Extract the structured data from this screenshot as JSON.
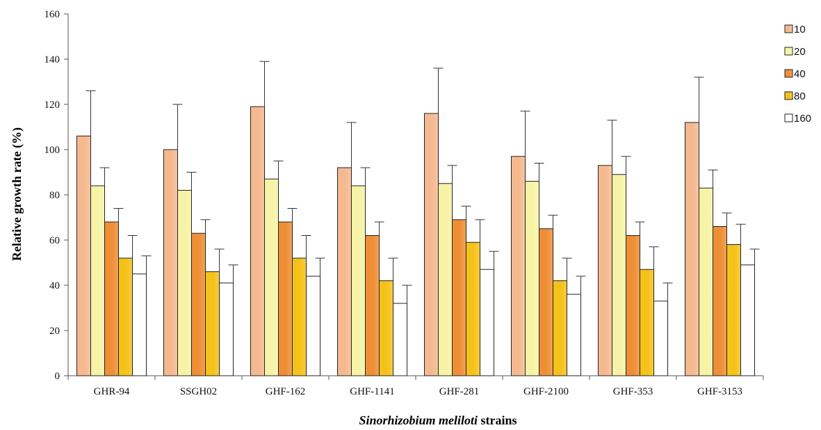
{
  "chart_data": {
    "type": "bar",
    "title": "",
    "xlabel_italic": "Sinorhizobium meliloti",
    "xlabel_rest": " strains",
    "ylabel": "Relative growth rate (%)",
    "ylim": [
      0,
      160
    ],
    "yticks": [
      "0",
      "20",
      "40",
      "60",
      "80",
      "100",
      "120",
      "140",
      "160"
    ],
    "categories": [
      "GHR-94",
      "SSGH02",
      "GHF-162",
      "GHF-1141",
      "GHF-281",
      "GHF-2100",
      "GHF-353",
      "GHF-3153"
    ],
    "legend_position": "right",
    "grid": false,
    "series": [
      {
        "name": "10",
        "color": "#F5B990",
        "values": [
          106,
          100,
          119,
          92,
          116,
          97,
          93,
          112
        ],
        "errors": [
          20,
          20,
          20,
          20,
          20,
          20,
          20,
          20
        ]
      },
      {
        "name": "20",
        "color": "#F6F3A6",
        "values": [
          84,
          82,
          87,
          84,
          85,
          86,
          89,
          83
        ],
        "errors": [
          8,
          8,
          8,
          8,
          8,
          8,
          8,
          8
        ]
      },
      {
        "name": "40",
        "color": "#EE8F36",
        "values": [
          68,
          63,
          68,
          62,
          69,
          65,
          62,
          66
        ],
        "errors": [
          6,
          6,
          6,
          6,
          6,
          6,
          6,
          6
        ]
      },
      {
        "name": "80",
        "color": "#F5C21A",
        "values": [
          52,
          46,
          52,
          42,
          59,
          42,
          47,
          58
        ],
        "errors": [
          10,
          10,
          10,
          10,
          10,
          10,
          10,
          9
        ]
      },
      {
        "name": "160",
        "color": "#FFFFFF",
        "values": [
          45,
          41,
          44,
          32,
          47,
          36,
          33,
          49
        ],
        "errors": [
          8,
          8,
          8,
          8,
          8,
          8,
          8,
          7
        ]
      }
    ]
  }
}
